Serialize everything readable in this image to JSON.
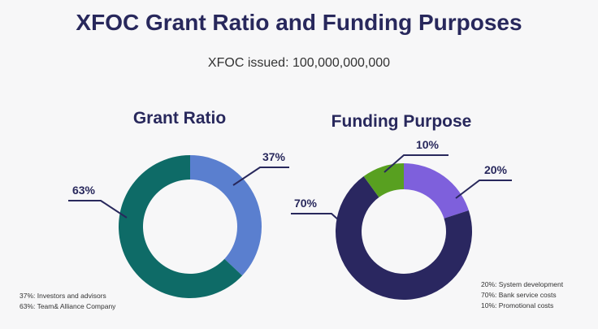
{
  "title": "XFOC Grant Ratio and Funding Purposes",
  "subtitle": "XFOC issued: 100,000,000,000",
  "chart_data": [
    {
      "type": "pie",
      "title": "Grant Ratio",
      "slices": [
        {
          "label": "37%",
          "legend": "37%: Investors and advisors",
          "value": 37,
          "color": "#5a7fcf"
        },
        {
          "label": "63%",
          "legend": "63%: Team& Alliance Company",
          "value": 63,
          "color": "#0e6b67"
        }
      ]
    },
    {
      "type": "pie",
      "title": "Funding Purpose",
      "slices": [
        {
          "label": "20%",
          "legend": "20%: System development",
          "value": 20,
          "color": "#7e60dc"
        },
        {
          "label": "70%",
          "legend": "70%: Bank service costs",
          "value": 70,
          "color": "#2a2760"
        },
        {
          "label": "10%",
          "legend": "10%: Promotional costs",
          "value": 10,
          "color": "#58a020"
        }
      ]
    }
  ],
  "legend_order": {
    "grant": [
      0,
      1
    ],
    "fund": [
      0,
      1,
      2
    ]
  }
}
